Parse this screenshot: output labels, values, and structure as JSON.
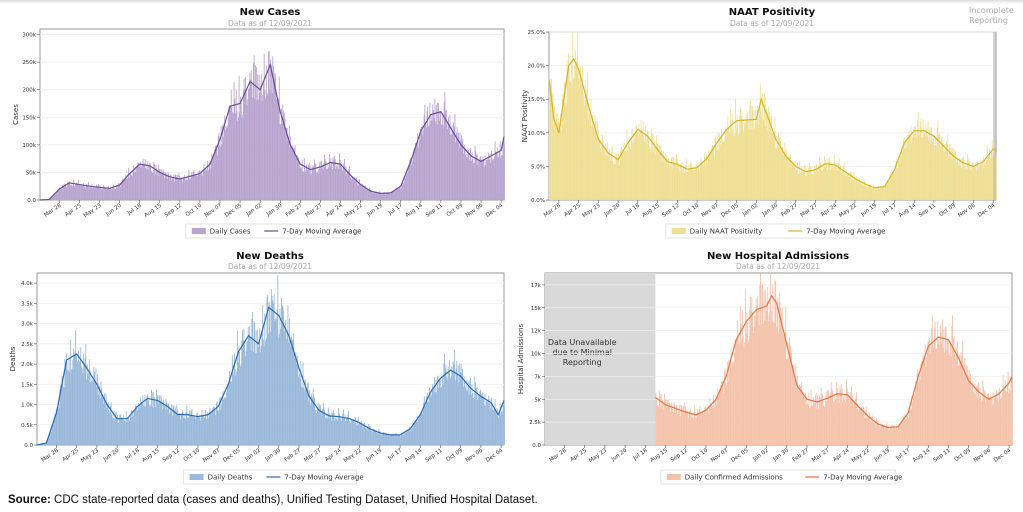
{
  "source": {
    "label": "Source:",
    "text": "CDC state-reported data (cases and deaths), Unified Testing Dataset, Unified Hospital Dataset."
  },
  "chart_data": [
    {
      "id": "cases",
      "type": "bar+line",
      "title": "New Cases",
      "subtitle": "Data as of 12/09/2021",
      "ylabel": "Cases",
      "ylim": [
        0,
        310000
      ],
      "yticks": [
        0,
        50000,
        100000,
        150000,
        200000,
        250000,
        300000
      ],
      "ytick_labels": [
        "0.0",
        "50k",
        "100k",
        "150k",
        "200k",
        "250k",
        "300k"
      ],
      "xlim": [
        "2020-03-01",
        "2021-12-08"
      ],
      "xticks": [
        "2020-03-28",
        "2020-04-25",
        "2020-05-23",
        "2020-06-20",
        "2020-07-18",
        "2020-08-15",
        "2020-09-12",
        "2020-10-10",
        "2020-11-07",
        "2020-12-05",
        "2021-01-02",
        "2021-01-30",
        "2021-02-27",
        "2021-03-27",
        "2021-04-24",
        "2021-05-22",
        "2021-06-19",
        "2021-07-17",
        "2021-08-14",
        "2021-09-11",
        "2021-10-09",
        "2021-11-06",
        "2021-12-04"
      ],
      "xtick_labels": [
        "Mar 28",
        "Apr 25",
        "May 23",
        "Jun 20",
        "Jul 18",
        "Aug 15",
        "Sep 12",
        "Oct 10",
        "Nov 07",
        "Dec 05",
        "Jan 02",
        "Jan 30",
        "Feb 27",
        "Mar 27",
        "Apr 24",
        "May 22",
        "Jun 19",
        "Jul 17",
        "Aug 14",
        "Sep 11",
        "Oct 09",
        "Nov 06",
        "Dec 04"
      ],
      "legend": [
        "Daily Cases",
        "7-Day Moving Average"
      ],
      "legend_position": "bottom-center",
      "colors": {
        "bar": "#b9a5cf",
        "line": "#6a4c9c"
      },
      "grid": "horizontal",
      "x": [
        "2020-03-01",
        "2020-03-14",
        "2020-03-28",
        "2020-04-11",
        "2020-04-25",
        "2020-05-09",
        "2020-05-23",
        "2020-06-06",
        "2020-06-20",
        "2020-07-04",
        "2020-07-18",
        "2020-08-01",
        "2020-08-15",
        "2020-08-29",
        "2020-09-12",
        "2020-09-26",
        "2020-10-10",
        "2020-10-24",
        "2020-11-07",
        "2020-11-21",
        "2020-12-05",
        "2020-12-19",
        "2021-01-02",
        "2021-01-16",
        "2021-01-30",
        "2021-02-13",
        "2021-02-27",
        "2021-03-13",
        "2021-03-27",
        "2021-04-10",
        "2021-04-24",
        "2021-05-08",
        "2021-05-22",
        "2021-06-05",
        "2021-06-19",
        "2021-07-03",
        "2021-07-17",
        "2021-07-31",
        "2021-08-14",
        "2021-08-28",
        "2021-09-11",
        "2021-09-25",
        "2021-10-09",
        "2021-10-23",
        "2021-11-06",
        "2021-11-20",
        "2021-12-04",
        "2021-12-08"
      ],
      "moving_average": [
        0,
        1000,
        20000,
        31000,
        28000,
        25000,
        23000,
        21000,
        27000,
        48000,
        65000,
        62000,
        50000,
        42000,
        38000,
        43000,
        48000,
        65000,
        110000,
        170000,
        175000,
        215000,
        200000,
        245000,
        160000,
        100000,
        65000,
        55000,
        60000,
        68000,
        65000,
        45000,
        28000,
        16000,
        12000,
        13000,
        25000,
        70000,
        125000,
        155000,
        160000,
        130000,
        100000,
        80000,
        70000,
        80000,
        90000,
        115000
      ]
    },
    {
      "id": "naat",
      "type": "bar+line",
      "title": "NAAT Positivity",
      "subtitle": "Data as of 12/09/2021",
      "annotation": [
        "Incomplete",
        "Reporting"
      ],
      "ylabel": "NAAT Positivity",
      "ylim": [
        0,
        25
      ],
      "yticks": [
        0,
        5,
        10,
        15,
        20,
        25
      ],
      "ytick_labels": [
        "0.0%",
        "5.0%",
        "10.0%",
        "15.0%",
        "20.0%",
        "25.0%"
      ],
      "xlim": [
        "2020-03-14",
        "2021-12-08"
      ],
      "xticks": [
        "2020-03-28",
        "2020-04-25",
        "2020-05-23",
        "2020-06-20",
        "2020-07-18",
        "2020-08-15",
        "2020-09-12",
        "2020-10-10",
        "2020-11-07",
        "2020-12-05",
        "2021-01-02",
        "2021-01-30",
        "2021-02-27",
        "2021-03-27",
        "2021-04-24",
        "2021-05-22",
        "2021-06-19",
        "2021-07-17",
        "2021-08-14",
        "2021-09-11",
        "2021-10-09",
        "2021-11-06",
        "2021-12-04"
      ],
      "xtick_labels": [
        "Mar 28",
        "Apr 25",
        "May 23",
        "Jun 20",
        "Jul 18",
        "Aug 15",
        "Sep 12",
        "Oct 10",
        "Nov 07",
        "Dec 05",
        "Jan 02",
        "Jan 30",
        "Feb 27",
        "Mar 27",
        "Apr 24",
        "May 22",
        "Jun 19",
        "Jul 17",
        "Aug 14",
        "Sep 11",
        "Oct 09",
        "Nov 06",
        "Dec 04"
      ],
      "legend": [
        "Daily NAAT Positivity",
        "7-Day Moving Average"
      ],
      "legend_position": "bottom-center",
      "colors": {
        "bar": "#efdf95",
        "line": "#d4b526",
        "incomplete": "#bbbbbb"
      },
      "incomplete_from": "2021-12-04",
      "grid": "horizontal",
      "x": [
        "2020-03-14",
        "2020-03-21",
        "2020-03-28",
        "2020-04-11",
        "2020-04-18",
        "2020-04-25",
        "2020-05-09",
        "2020-05-23",
        "2020-06-06",
        "2020-06-20",
        "2020-07-04",
        "2020-07-18",
        "2020-08-01",
        "2020-08-15",
        "2020-08-29",
        "2020-09-12",
        "2020-09-26",
        "2020-10-10",
        "2020-10-24",
        "2020-11-07",
        "2020-11-21",
        "2020-12-05",
        "2020-12-19",
        "2021-01-02",
        "2021-01-09",
        "2021-01-16",
        "2021-01-30",
        "2021-02-13",
        "2021-02-27",
        "2021-03-13",
        "2021-03-27",
        "2021-04-10",
        "2021-04-24",
        "2021-05-08",
        "2021-05-22",
        "2021-06-05",
        "2021-06-19",
        "2021-07-03",
        "2021-07-17",
        "2021-07-31",
        "2021-08-14",
        "2021-08-28",
        "2021-09-11",
        "2021-09-25",
        "2021-10-09",
        "2021-10-23",
        "2021-11-06",
        "2021-11-20",
        "2021-12-04",
        "2021-12-08"
      ],
      "moving_average": [
        18,
        12,
        10,
        20,
        21,
        19.5,
        14,
        9,
        7,
        6,
        8.5,
        10.5,
        9.5,
        7.5,
        5.7,
        5.3,
        4.6,
        4.8,
        6.2,
        8.5,
        10.5,
        11.8,
        11.9,
        12,
        15,
        13,
        9,
        6.5,
        5,
        4.2,
        4.5,
        5.4,
        5.2,
        4.2,
        3.2,
        2.4,
        1.8,
        2.0,
        4.5,
        8.5,
        10.3,
        10.3,
        9.5,
        8,
        6.5,
        5.5,
        5.0,
        5.7,
        7.6,
        7.4
      ]
    },
    {
      "id": "deaths",
      "type": "bar+line",
      "title": "New Deaths",
      "subtitle": "Data as of 12/09/2021",
      "ylabel": "Deaths",
      "ylim": [
        0,
        4250
      ],
      "yticks": [
        0,
        500,
        1000,
        1500,
        2000,
        2500,
        3000,
        3500,
        4000
      ],
      "ytick_labels": [
        "0.0",
        "0.5k",
        "1.0k",
        "1.5k",
        "2.0k",
        "2.5k",
        "3.0k",
        "3.5k",
        "4.0k"
      ],
      "xlim": [
        "2020-03-01",
        "2021-12-08"
      ],
      "xticks": [
        "2020-03-28",
        "2020-04-25",
        "2020-05-23",
        "2020-06-20",
        "2020-07-18",
        "2020-08-15",
        "2020-09-12",
        "2020-10-10",
        "2020-11-07",
        "2020-12-05",
        "2021-01-02",
        "2021-01-30",
        "2021-02-27",
        "2021-03-27",
        "2021-04-24",
        "2021-05-22",
        "2021-06-19",
        "2021-07-17",
        "2021-08-14",
        "2021-09-11",
        "2021-10-09",
        "2021-11-06",
        "2021-12-04"
      ],
      "xtick_labels": [
        "Mar 28",
        "Apr 25",
        "May 23",
        "Jun 20",
        "Jul 18",
        "Aug 15",
        "Sep 12",
        "Oct 10",
        "Nov 07",
        "Dec 05",
        "Jan 02",
        "Jan 30",
        "Feb 27",
        "Mar 27",
        "Apr 24",
        "May 22",
        "Jun 19",
        "Jul 17",
        "Aug 14",
        "Sep 11",
        "Oct 09",
        "Nov 06",
        "Dec 04"
      ],
      "legend": [
        "Daily Deaths",
        "7-Day Moving Average"
      ],
      "legend_position": "bottom-center",
      "colors": {
        "bar": "#9bb9db",
        "line": "#2c6bb3"
      },
      "grid": "horizontal",
      "x": [
        "2020-03-01",
        "2020-03-14",
        "2020-03-28",
        "2020-04-11",
        "2020-04-25",
        "2020-05-09",
        "2020-05-23",
        "2020-06-06",
        "2020-06-20",
        "2020-07-04",
        "2020-07-18",
        "2020-08-01",
        "2020-08-15",
        "2020-08-29",
        "2020-09-12",
        "2020-09-26",
        "2020-10-10",
        "2020-10-24",
        "2020-11-07",
        "2020-11-21",
        "2020-12-05",
        "2020-12-19",
        "2021-01-02",
        "2021-01-16",
        "2021-01-30",
        "2021-02-13",
        "2021-02-27",
        "2021-03-13",
        "2021-03-27",
        "2021-04-10",
        "2021-04-24",
        "2021-05-08",
        "2021-05-22",
        "2021-06-05",
        "2021-06-19",
        "2021-07-03",
        "2021-07-17",
        "2021-07-31",
        "2021-08-14",
        "2021-08-28",
        "2021-09-11",
        "2021-09-25",
        "2021-10-09",
        "2021-10-23",
        "2021-11-06",
        "2021-11-20",
        "2021-11-30",
        "2021-12-08"
      ],
      "moving_average": [
        0,
        50,
        800,
        2100,
        2250,
        1900,
        1500,
        1000,
        650,
        650,
        950,
        1150,
        1100,
        950,
        750,
        750,
        700,
        750,
        950,
        1500,
        2300,
        2700,
        2500,
        3400,
        3200,
        2700,
        1900,
        1200,
        850,
        720,
        700,
        650,
        550,
        400,
        300,
        250,
        250,
        400,
        750,
        1300,
        1650,
        1850,
        1700,
        1400,
        1200,
        1050,
        750,
        1100
      ]
    },
    {
      "id": "hospital",
      "type": "bar+line",
      "title": "New Hospital Admissions",
      "subtitle": "Data as of 12/09/2021",
      "ylabel": "Hospital Admissions",
      "ylim": [
        0,
        18800
      ],
      "yticks": [
        0,
        2500,
        5000,
        7500,
        10000,
        12500,
        15000,
        17500
      ],
      "ytick_labels": [
        "0.0",
        "2.5k",
        "5k",
        "7k",
        "10k",
        "12k",
        "15k",
        "17k"
      ],
      "xlim": [
        "2020-03-01",
        "2021-12-08"
      ],
      "xticks": [
        "2020-03-28",
        "2020-04-25",
        "2020-05-23",
        "2020-06-20",
        "2020-07-18",
        "2020-08-15",
        "2020-09-12",
        "2020-10-10",
        "2020-11-07",
        "2020-12-05",
        "2021-01-02",
        "2021-01-30",
        "2021-02-27",
        "2021-03-27",
        "2021-04-24",
        "2021-05-22",
        "2021-06-19",
        "2021-07-17",
        "2021-08-14",
        "2021-09-11",
        "2021-10-09",
        "2021-11-06",
        "2021-12-04"
      ],
      "xtick_labels": [
        "Mar 28",
        "Apr 25",
        "May 23",
        "Jun 20",
        "Jul 18",
        "Aug 15",
        "Sep 12",
        "Oct 10",
        "Nov 07",
        "Dec 05",
        "Jan 02",
        "Jan 30",
        "Feb 27",
        "Mar 27",
        "Apr 24",
        "May 22",
        "Jun 19",
        "Jul 17",
        "Aug 14",
        "Sep 11",
        "Oct 09",
        "Nov 06",
        "Dec 04"
      ],
      "legend": [
        "Daily Confirmed Admissions",
        "7-Day Moving Average"
      ],
      "legend_position": "bottom-center",
      "colors": {
        "bar": "#f5c3ab",
        "line": "#ea7344",
        "unavailable": "#d9d9d9"
      },
      "unavailable_range": [
        "2020-03-01",
        "2020-08-01"
      ],
      "unavailable_label": [
        "Data Unavailable",
        "due to Minimal",
        "Reporting"
      ],
      "grid": "horizontal",
      "x": [
        "2020-08-01",
        "2020-08-15",
        "2020-08-29",
        "2020-09-12",
        "2020-09-26",
        "2020-10-10",
        "2020-10-24",
        "2020-11-07",
        "2020-11-21",
        "2020-12-05",
        "2020-12-19",
        "2021-01-02",
        "2021-01-09",
        "2021-01-16",
        "2021-01-30",
        "2021-02-13",
        "2021-02-27",
        "2021-03-13",
        "2021-03-27",
        "2021-04-10",
        "2021-04-24",
        "2021-05-08",
        "2021-05-22",
        "2021-06-05",
        "2021-06-19",
        "2021-07-03",
        "2021-07-17",
        "2021-07-31",
        "2021-08-14",
        "2021-08-28",
        "2021-09-11",
        "2021-09-25",
        "2021-10-09",
        "2021-10-23",
        "2021-11-06",
        "2021-11-20",
        "2021-12-04",
        "2021-12-08"
      ],
      "moving_average": [
        5200,
        4400,
        4000,
        3600,
        3300,
        3800,
        5000,
        7500,
        11500,
        13500,
        14800,
        15200,
        16300,
        15500,
        11000,
        6500,
        5000,
        4700,
        5100,
        5600,
        5500,
        4300,
        3200,
        2300,
        1900,
        2000,
        3500,
        7500,
        10800,
        11800,
        11500,
        9500,
        7000,
        5800,
        5000,
        5600,
        6800,
        7500
      ]
    }
  ]
}
